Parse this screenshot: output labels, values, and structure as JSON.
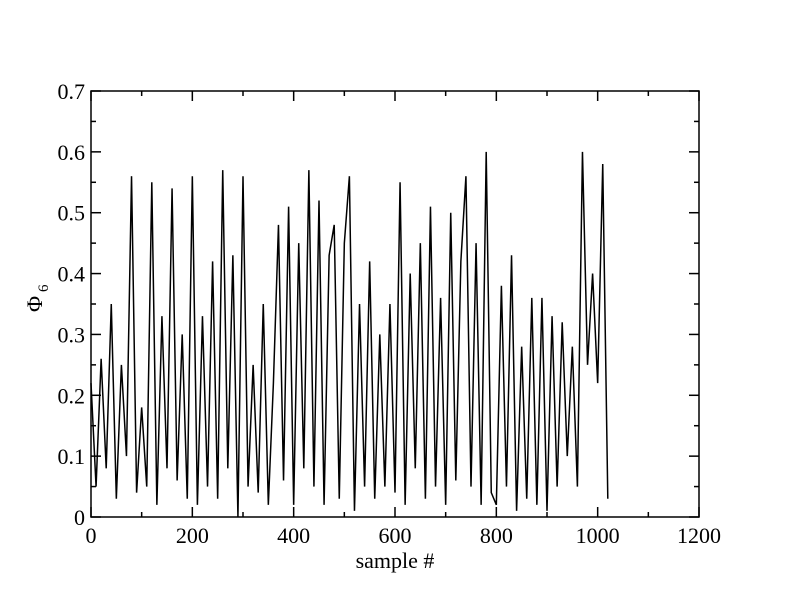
{
  "chart_data": {
    "type": "line",
    "xlabel": "sample #",
    "ylabel": {
      "text": "Φ",
      "subscript": "6"
    },
    "xlim": [
      0,
      1200
    ],
    "xticks": [
      0,
      200,
      400,
      600,
      800,
      1000,
      1200
    ],
    "xminorticks": [
      100,
      300,
      500,
      700,
      900,
      1100
    ],
    "ylim": [
      0,
      0.7
    ],
    "yticks": [
      0,
      0.1,
      0.2,
      0.3,
      0.4,
      0.5,
      0.6,
      0.7
    ],
    "yminorticks": [
      0.05,
      0.15,
      0.25,
      0.35,
      0.45,
      0.55,
      0.65
    ],
    "color": "#000000",
    "x": [
      0,
      10,
      20,
      30,
      40,
      50,
      60,
      70,
      80,
      90,
      100,
      110,
      120,
      130,
      140,
      150,
      160,
      170,
      180,
      190,
      200,
      210,
      220,
      230,
      240,
      250,
      260,
      270,
      280,
      290,
      300,
      310,
      320,
      330,
      340,
      350,
      360,
      370,
      380,
      390,
      400,
      410,
      420,
      430,
      440,
      450,
      460,
      470,
      480,
      490,
      500,
      510,
      520,
      530,
      540,
      550,
      560,
      570,
      580,
      590,
      600,
      610,
      620,
      630,
      640,
      650,
      660,
      670,
      680,
      690,
      700,
      710,
      720,
      730,
      740,
      750,
      760,
      770,
      780,
      790,
      800,
      810,
      820,
      830,
      840,
      850,
      860,
      870,
      880,
      890,
      900,
      910,
      920,
      930,
      940,
      950,
      960,
      970,
      980,
      990,
      1000,
      1010,
      1020
    ],
    "values": [
      0.22,
      0.05,
      0.26,
      0.08,
      0.35,
      0.03,
      0.25,
      0.1,
      0.56,
      0.04,
      0.18,
      0.05,
      0.55,
      0.02,
      0.33,
      0.08,
      0.54,
      0.06,
      0.3,
      0.03,
      0.56,
      0.02,
      0.33,
      0.05,
      0.42,
      0.03,
      0.57,
      0.08,
      0.43,
      0.0,
      0.56,
      0.05,
      0.25,
      0.04,
      0.35,
      0.02,
      0.22,
      0.48,
      0.06,
      0.51,
      0.02,
      0.45,
      0.08,
      0.57,
      0.05,
      0.52,
      0.02,
      0.43,
      0.48,
      0.03,
      0.45,
      0.56,
      0.01,
      0.35,
      0.05,
      0.42,
      0.03,
      0.3,
      0.05,
      0.35,
      0.04,
      0.55,
      0.02,
      0.4,
      0.08,
      0.45,
      0.03,
      0.51,
      0.05,
      0.36,
      0.02,
      0.5,
      0.06,
      0.42,
      0.56,
      0.05,
      0.45,
      0.02,
      0.6,
      0.04,
      0.02,
      0.38,
      0.05,
      0.43,
      0.01,
      0.28,
      0.03,
      0.36,
      0.02,
      0.36,
      0.01,
      0.33,
      0.05,
      0.32,
      0.1,
      0.28,
      0.05,
      0.6,
      0.25,
      0.4,
      0.22,
      0.58,
      0.03
    ]
  }
}
